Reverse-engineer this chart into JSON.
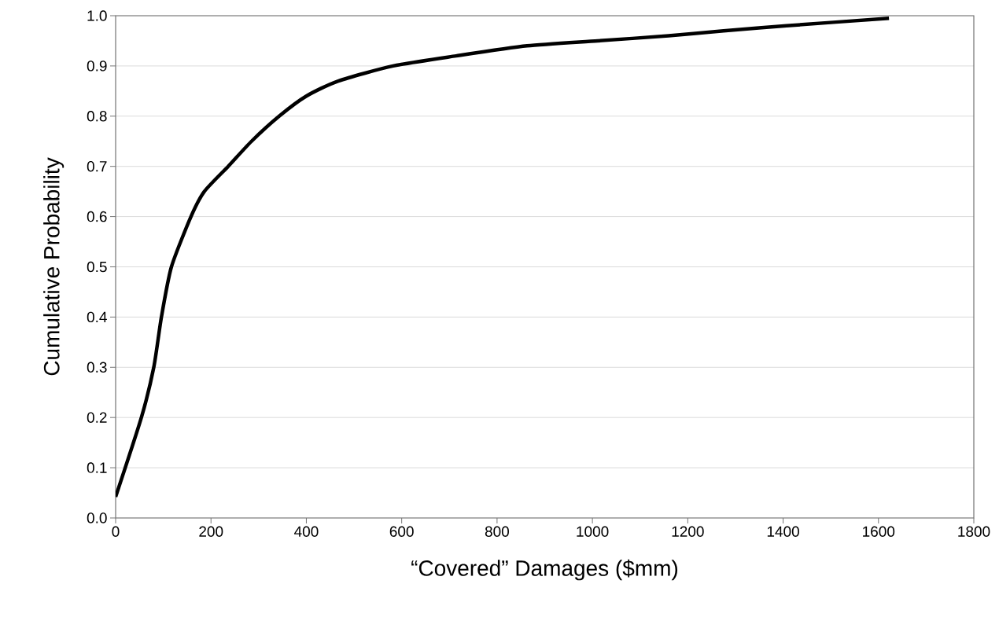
{
  "chart_data": {
    "type": "line",
    "xlabel": "“Covered” Damages ($mm)",
    "ylabel": "Cumulative Probability",
    "x": [
      0,
      54,
      80,
      96,
      117,
      158,
      186,
      236,
      285,
      343,
      400,
      467,
      582,
      714,
      863,
      1011,
      1160,
      1275,
      1407,
      1622
    ],
    "series": [
      {
        "color": "#000000",
        "values": [
          0.042,
          0.2,
          0.3,
          0.4,
          0.5,
          0.6,
          0.65,
          0.7,
          0.75,
          0.8,
          0.84,
          0.87,
          0.9,
          0.92,
          0.94,
          0.95,
          0.96,
          0.97,
          0.98,
          0.995
        ]
      }
    ],
    "xlim": [
      0,
      1800
    ],
    "xticks": [
      0,
      200,
      400,
      600,
      800,
      1000,
      1200,
      1400,
      1600,
      1800
    ],
    "ylim": [
      0,
      1
    ],
    "yticks": [
      {
        "value": 0,
        "label": "0.0"
      },
      0.1,
      0.2,
      0.3,
      0.4,
      0.5,
      0.6,
      0.7,
      0.8,
      0.9,
      {
        "value": 1,
        "label": "1.0"
      }
    ],
    "grid": "y",
    "marker": "none",
    "line_style": "solid"
  }
}
